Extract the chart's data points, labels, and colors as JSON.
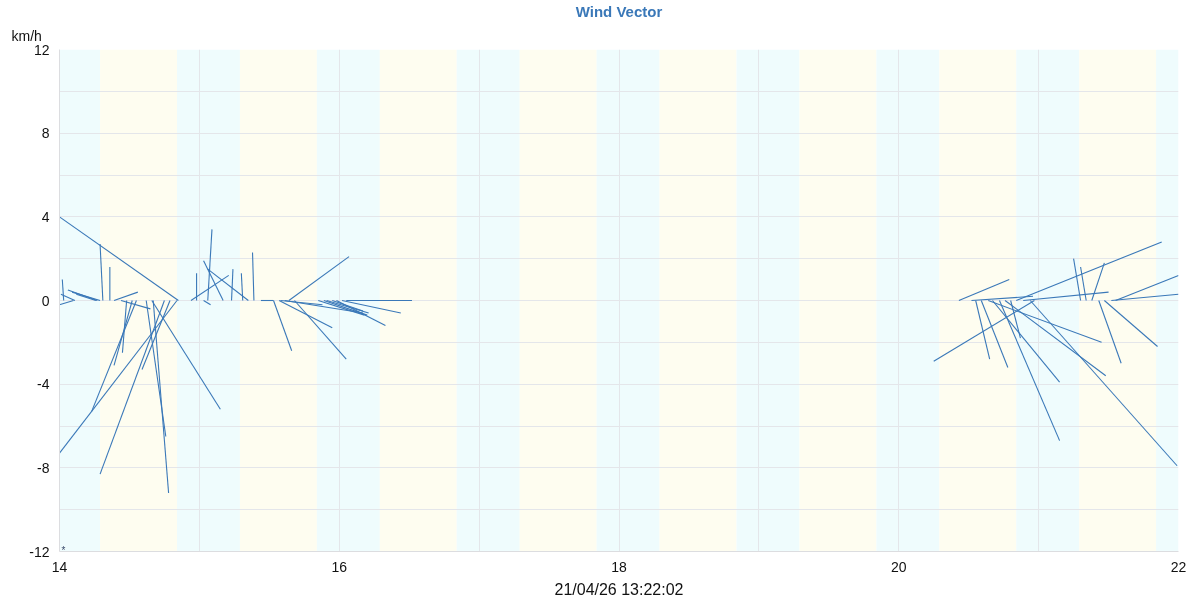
{
  "chart_data": {
    "type": "line",
    "title": "Wind Vector",
    "xlabel": "21/04/26 13:22:02",
    "ylabel": "km/h",
    "annotations": [
      "*"
    ],
    "xlim": [
      14,
      22
    ],
    "ylim": [
      -12,
      12
    ],
    "xticks": [
      14,
      {
        "value": 15,
        "label": null
      },
      16,
      {
        "value": 17,
        "label": null
      },
      18,
      {
        "value": 19,
        "label": null
      },
      20,
      {
        "value": 21,
        "label": null
      },
      22
    ],
    "yticks": [
      -12,
      {
        "value": -10,
        "label": null
      },
      -8,
      {
        "value": -6,
        "label": null
      },
      -4,
      {
        "value": -2,
        "label": null
      },
      0,
      {
        "value": 2,
        "label": null
      },
      4,
      {
        "value": 6,
        "label": null
      },
      8,
      {
        "value": 10,
        "label": null
      },
      12
    ],
    "grid": true,
    "bands": [
      {
        "axis": "x",
        "from": 14,
        "to": 14.29,
        "color": "#effcfd"
      },
      {
        "axis": "x",
        "from": 14.29,
        "to": 14.84,
        "color": "#fefdf0"
      },
      {
        "axis": "x",
        "from": 14.84,
        "to": 15.29,
        "color": "#effcfd"
      },
      {
        "axis": "x",
        "from": 15.29,
        "to": 15.84,
        "color": "#fefdf0"
      },
      {
        "axis": "x",
        "from": 15.84,
        "to": 16.29,
        "color": "#effcfd"
      },
      {
        "axis": "x",
        "from": 16.29,
        "to": 16.84,
        "color": "#fefdf0"
      },
      {
        "axis": "x",
        "from": 16.84,
        "to": 17.29,
        "color": "#effcfd"
      },
      {
        "axis": "x",
        "from": 17.29,
        "to": 17.84,
        "color": "#fefdf0"
      },
      {
        "axis": "x",
        "from": 17.84,
        "to": 18.29,
        "color": "#effcfd"
      },
      {
        "axis": "x",
        "from": 18.29,
        "to": 18.84,
        "color": "#fefdf0"
      },
      {
        "axis": "x",
        "from": 18.84,
        "to": 19.29,
        "color": "#effcfd"
      },
      {
        "axis": "x",
        "from": 19.29,
        "to": 19.84,
        "color": "#fefdf0"
      },
      {
        "axis": "x",
        "from": 19.84,
        "to": 20.29,
        "color": "#effcfd"
      },
      {
        "axis": "x",
        "from": 20.29,
        "to": 20.84,
        "color": "#fefdf0"
      },
      {
        "axis": "x",
        "from": 20.84,
        "to": 21.29,
        "color": "#effcfd"
      },
      {
        "axis": "x",
        "from": 21.29,
        "to": 21.84,
        "color": "#fefdf0"
      },
      {
        "axis": "x",
        "from": 21.84,
        "to": 22,
        "color": "#effcfd"
      }
    ],
    "series": [
      {
        "color": "#3a78b8",
        "x": [
          14.1,
          14.0
        ],
        "values": [
          0,
          -0.2
        ]
      },
      {
        "color": "#3a78b8",
        "x": [
          14.11,
          14.01
        ],
        "values": [
          0,
          0.3
        ]
      },
      {
        "color": "#3a78b8",
        "x": [
          14.03,
          14.02
        ],
        "values": [
          0,
          1.0
        ]
      },
      {
        "color": "#3a78b8",
        "x": [
          14.27,
          14.06
        ],
        "values": [
          0,
          0.5
        ]
      },
      {
        "color": "#3a78b8",
        "x": [
          14.29,
          14.09
        ],
        "values": [
          0,
          0.4
        ]
      },
      {
        "color": "#3a78b8",
        "x": [
          14.26,
          14.12
        ],
        "values": [
          0,
          0.3
        ]
      },
      {
        "color": "#3a78b8",
        "x": [
          14.31,
          14.29
        ],
        "values": [
          0,
          2.7
        ]
      },
      {
        "color": "#3a78b8",
        "x": [
          14.36,
          14.36
        ],
        "values": [
          0,
          1.6
        ]
      },
      {
        "color": "#3a78b8",
        "x": [
          14.39,
          14.56
        ],
        "values": [
          0,
          0.4
        ]
      },
      {
        "color": "#3a78b8",
        "x": [
          14.44,
          14.65
        ],
        "values": [
          0,
          -0.4
        ]
      },
      {
        "color": "#3a78b8",
        "x": [
          14.48,
          14.45
        ],
        "values": [
          0,
          -2.5
        ]
      },
      {
        "color": "#3a78b8",
        "x": [
          14.52,
          14.39
        ],
        "values": [
          0,
          -3.1
        ]
      },
      {
        "color": "#3a78b8",
        "x": [
          14.55,
          14.23
        ],
        "values": [
          0,
          -5.3
        ]
      },
      {
        "color": "#3a78b8",
        "x": [
          14.84,
          14.0
        ],
        "values": [
          0,
          -7.3
        ]
      },
      {
        "color": "#3a78b8",
        "x": [
          14.75,
          14.29
        ],
        "values": [
          0,
          -8.3
        ]
      },
      {
        "color": "#3a78b8",
        "x": [
          14.79,
          14.59
        ],
        "values": [
          0,
          -3.3
        ]
      },
      {
        "color": "#3a78b8",
        "x": [
          14.62,
          14.76
        ],
        "values": [
          0,
          -6.5
        ]
      },
      {
        "color": "#3a78b8",
        "x": [
          14.67,
          14.78
        ],
        "values": [
          0,
          -9.2
        ]
      },
      {
        "color": "#3a78b8",
        "x": [
          14.66,
          15.15
        ],
        "values": [
          0,
          -5.2
        ]
      },
      {
        "color": "#3a78b8",
        "x": [
          14.85,
          14.0
        ],
        "values": [
          0,
          4.0
        ]
      },
      {
        "color": "#3a78b8",
        "x": [
          14.94,
          15.21
        ],
        "values": [
          0,
          1.2
        ]
      },
      {
        "color": "#3a78b8",
        "x": [
          14.98,
          14.98
        ],
        "values": [
          0,
          1.3
        ]
      },
      {
        "color": "#3a78b8",
        "x": [
          15.03,
          15.08
        ],
        "values": [
          0,
          -0.2
        ]
      },
      {
        "color": "#3a78b8",
        "x": [
          15.17,
          15.03
        ],
        "values": [
          0,
          1.9
        ]
      },
      {
        "color": "#3a78b8",
        "x": [
          15.06,
          15.09
        ],
        "values": [
          0,
          3.4
        ]
      },
      {
        "color": "#3a78b8",
        "x": [
          15.35,
          15.06
        ],
        "values": [
          0,
          1.5
        ]
      },
      {
        "color": "#3a78b8",
        "x": [
          15.23,
          15.24
        ],
        "values": [
          0,
          1.5
        ]
      },
      {
        "color": "#3a78b8",
        "x": [
          15.31,
          15.3
        ],
        "values": [
          0,
          1.3
        ]
      },
      {
        "color": "#3a78b8",
        "x": [
          15.39,
          15.38
        ],
        "values": [
          0,
          2.3
        ]
      },
      {
        "color": "#3a78b8",
        "x": [
          15.44,
          15.53
        ],
        "values": [
          0,
          0
        ]
      },
      {
        "color": "#3a78b8",
        "x": [
          15.53,
          15.66
        ],
        "values": [
          0,
          -2.4
        ]
      },
      {
        "color": "#3a78b8",
        "x": [
          15.64,
          16.07
        ],
        "values": [
          0,
          2.1
        ]
      },
      {
        "color": "#3a78b8",
        "x": [
          15.68,
          16.05
        ],
        "values": [
          0,
          -2.8
        ]
      },
      {
        "color": "#3a78b8",
        "x": [
          15.57,
          15.95
        ],
        "values": [
          0,
          -1.3
        ]
      },
      {
        "color": "#3a78b8",
        "x": [
          15.58,
          15.88
        ],
        "values": [
          0,
          -0.2
        ]
      },
      {
        "color": "#3a78b8",
        "x": [
          15.61,
          16.17
        ],
        "values": [
          0,
          -0.6
        ]
      },
      {
        "color": "#3a78b8",
        "x": [
          15.85,
          16.18
        ],
        "values": [
          0,
          -0.7
        ]
      },
      {
        "color": "#3a78b8",
        "x": [
          15.89,
          16.2
        ],
        "values": [
          0,
          -0.7
        ]
      },
      {
        "color": "#3a78b8",
        "x": [
          15.91,
          16.21
        ],
        "values": [
          0,
          -0.6
        ]
      },
      {
        "color": "#3a78b8",
        "x": [
          15.95,
          16.17
        ],
        "values": [
          0,
          -0.5
        ]
      },
      {
        "color": "#3a78b8",
        "x": [
          15.98,
          16.33
        ],
        "values": [
          0,
          -1.2
        ]
      },
      {
        "color": "#3a78b8",
        "x": [
          16.02,
          16.44
        ],
        "values": [
          0,
          -0.6
        ]
      },
      {
        "color": "#3a78b8",
        "x": [
          16.05,
          16.52
        ],
        "values": [
          0,
          0
        ]
      },
      {
        "color": "#3a78b8",
        "x": [
          20.43,
          20.79
        ],
        "values": [
          0,
          1.0
        ]
      },
      {
        "color": "#3a78b8",
        "x": [
          20.97,
          20.25
        ],
        "values": [
          0,
          -2.9
        ]
      },
      {
        "color": "#3a78b8",
        "x": [
          20.55,
          20.65
        ],
        "values": [
          0,
          -2.8
        ]
      },
      {
        "color": "#3a78b8",
        "x": [
          20.59,
          20.78
        ],
        "values": [
          0,
          -3.2
        ]
      },
      {
        "color": "#3a78b8",
        "x": [
          20.64,
          21.45
        ],
        "values": [
          0,
          -2.0
        ]
      },
      {
        "color": "#3a78b8",
        "x": [
          20.67,
          21.15
        ],
        "values": [
          0,
          -3.9
        ]
      },
      {
        "color": "#3a78b8",
        "x": [
          20.72,
          21.15
        ],
        "values": [
          0,
          -6.7
        ]
      },
      {
        "color": "#3a78b8",
        "x": [
          20.76,
          21.48
        ],
        "values": [
          0,
          -3.6
        ]
      },
      {
        "color": "#3a78b8",
        "x": [
          20.8,
          20.87
        ],
        "values": [
          0,
          -1.8
        ]
      },
      {
        "color": "#3a78b8",
        "x": [
          20.84,
          21.88
        ],
        "values": [
          0,
          2.8
        ]
      },
      {
        "color": "#3a78b8",
        "x": [
          20.89,
          21.5
        ],
        "values": [
          0,
          0.4
        ]
      },
      {
        "color": "#3a78b8",
        "x": [
          20.94,
          21.99
        ],
        "values": [
          0,
          -7.9
        ]
      },
      {
        "color": "#3a78b8",
        "x": [
          20.52,
          20.96
        ],
        "values": [
          0,
          0.2
        ]
      },
      {
        "color": "#3a78b8",
        "x": [
          21.3,
          21.25
        ],
        "values": [
          0,
          2.0
        ]
      },
      {
        "color": "#3a78b8",
        "x": [
          21.34,
          21.3
        ],
        "values": [
          0,
          1.6
        ]
      },
      {
        "color": "#3a78b8",
        "x": [
          21.38,
          21.47
        ],
        "values": [
          0,
          1.8
        ]
      },
      {
        "color": "#3a78b8",
        "x": [
          21.43,
          21.59
        ],
        "values": [
          0,
          -3.0
        ]
      },
      {
        "color": "#3a78b8",
        "x": [
          21.47,
          21.85
        ],
        "values": [
          0,
          -2.2
        ]
      },
      {
        "color": "#3a78b8",
        "x": [
          21.55,
          22.0
        ],
        "values": [
          0,
          1.2
        ]
      },
      {
        "color": "#3a78b8",
        "x": [
          21.52,
          22.0
        ],
        "values": [
          0,
          0.3
        ]
      }
    ]
  }
}
